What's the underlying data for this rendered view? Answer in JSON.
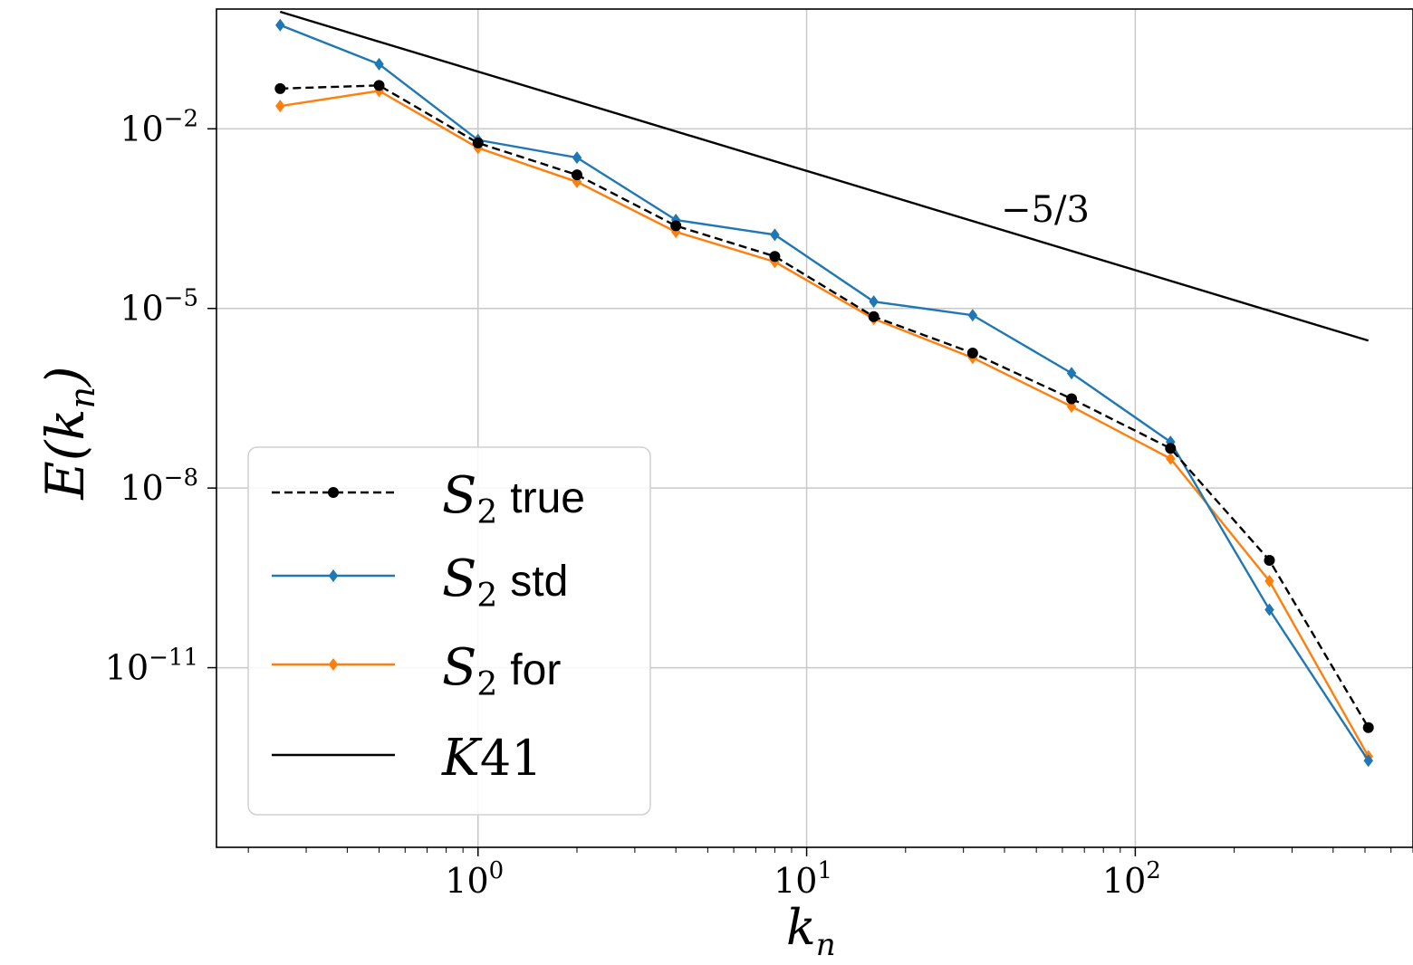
{
  "chart_data": {
    "type": "line",
    "xscale": "log",
    "yscale": "log",
    "xlabel_var": "k",
    "xlabel_sub": "n",
    "ylabel_fn": "E(",
    "ylabel_var": "k",
    "ylabel_sub": "n",
    "ylabel_close": ")",
    "xlim": [
      0.16,
      700
    ],
    "ylim": [
      1e-14,
      1.0
    ],
    "x_ticks": [
      {
        "base": "10",
        "exp": "0",
        "value": 1
      },
      {
        "base": "10",
        "exp": "1",
        "value": 10
      },
      {
        "base": "10",
        "exp": "2",
        "value": 100
      }
    ],
    "y_ticks": [
      {
        "base": "10",
        "exp": "−2",
        "value": 0.01
      },
      {
        "base": "10",
        "exp": "−5",
        "value": 1e-05
      },
      {
        "base": "10",
        "exp": "−8",
        "value": 1e-08
      },
      {
        "base": "10",
        "exp": "−11",
        "value": 1e-11
      }
    ],
    "grid": true,
    "legend_position": "lower-left",
    "annotation": "−5/3",
    "x": [
      0.25,
      0.5,
      1,
      2,
      4,
      8,
      16,
      32,
      64,
      128,
      256,
      512
    ],
    "series": [
      {
        "name_var": "S",
        "name_sub": "2",
        "name_word": "true",
        "style": "dashed",
        "marker": "circle",
        "color": "#000000",
        "values": [
          0.047,
          0.053,
          0.0058,
          0.0017,
          0.00024,
          7.4e-05,
          7.3e-06,
          1.8e-06,
          3.1e-07,
          4.6e-08,
          6.2e-10,
          1e-12
        ]
      },
      {
        "name_var": "S",
        "name_sub": "2",
        "name_word": "std",
        "style": "solid",
        "marker": "diamond",
        "color": "#1f77b4",
        "values": [
          0.54,
          0.12,
          0.0065,
          0.0033,
          0.0003,
          0.00017,
          1.3e-05,
          7.7e-06,
          8.3e-07,
          5.9e-08,
          9.3e-11,
          2.8e-13
        ]
      },
      {
        "name_var": "S",
        "name_sub": "2",
        "name_word": "for",
        "style": "solid",
        "marker": "diamond",
        "color": "#ff7f0e",
        "values": [
          0.024,
          0.043,
          0.0048,
          0.0013,
          0.00019,
          6e-05,
          6.7e-06,
          1.5e-06,
          2.3e-07,
          3.1e-08,
          2.8e-10,
          3.3e-13
        ]
      },
      {
        "name_var": "K",
        "name_sub": "",
        "name_word": "41",
        "style": "solid",
        "marker": "none",
        "color": "#000000",
        "values": [
          0.9,
          null,
          null,
          null,
          null,
          null,
          null,
          null,
          null,
          null,
          null,
          2.9e-06
        ]
      }
    ]
  }
}
